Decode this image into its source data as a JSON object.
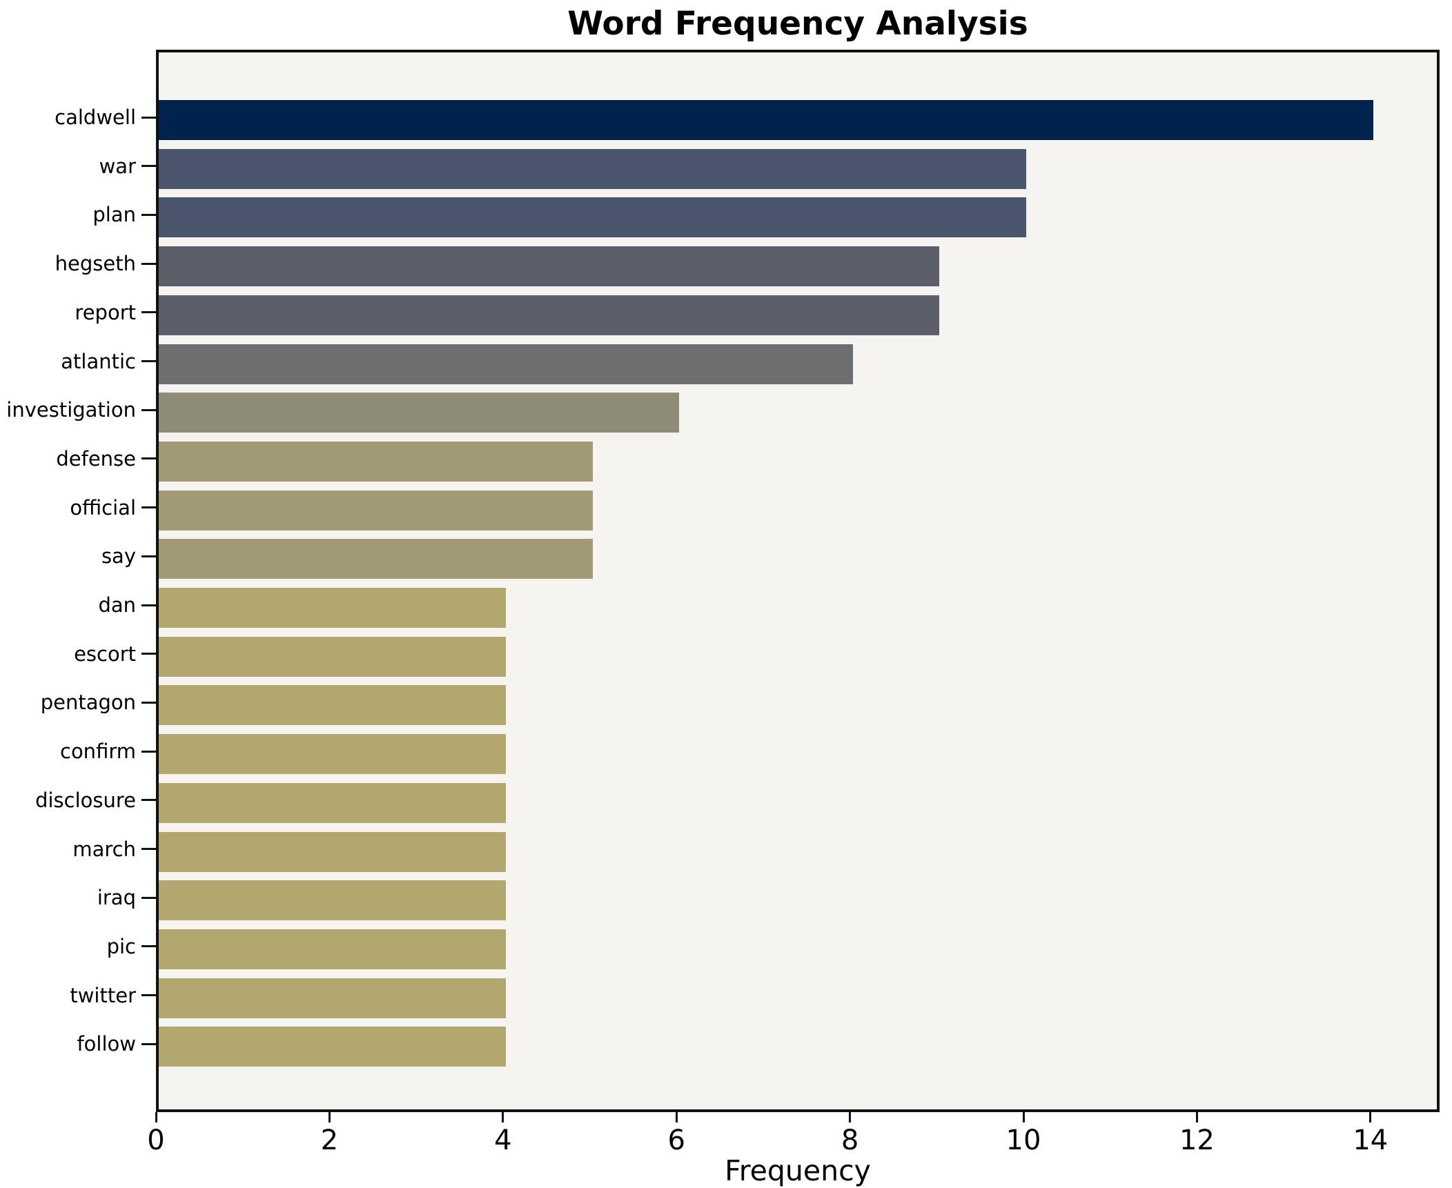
{
  "chart_data": {
    "type": "bar",
    "orientation": "horizontal",
    "title": "Word Frequency Analysis",
    "xlabel": "Frequency",
    "ylabel": "",
    "categories": [
      "caldwell",
      "war",
      "plan",
      "hegseth",
      "report",
      "atlantic",
      "investigation",
      "defense",
      "official",
      "say",
      "dan",
      "escort",
      "pentagon",
      "confirm",
      "disclosure",
      "march",
      "iraq",
      "pic",
      "twitter",
      "follow"
    ],
    "values": [
      14,
      10,
      10,
      9,
      9,
      8,
      6,
      5,
      5,
      5,
      4,
      4,
      4,
      4,
      4,
      4,
      4,
      4,
      4,
      4
    ],
    "bar_colors": [
      "#00234e",
      "#4c556e",
      "#4c556e",
      "#5c5f69",
      "#5c5f69",
      "#6d6e70",
      "#8e8b79",
      "#a19a74",
      "#a19a74",
      "#a19a74",
      "#b2a76f",
      "#b2a76f",
      "#b2a76f",
      "#b2a76f",
      "#b2a76f",
      "#b2a76f",
      "#b2a76f",
      "#b2a76f",
      "#b2a76f",
      "#b2a76f"
    ],
    "x_ticks": [
      0,
      2,
      4,
      6,
      8,
      10,
      12,
      14
    ],
    "xlim": [
      0,
      14.7
    ],
    "grid": false,
    "legend": null,
    "plot_background": "#f5f4f1",
    "figure_background": "#ffffff",
    "spine_color": "#111111",
    "text_color": "#000000"
  }
}
